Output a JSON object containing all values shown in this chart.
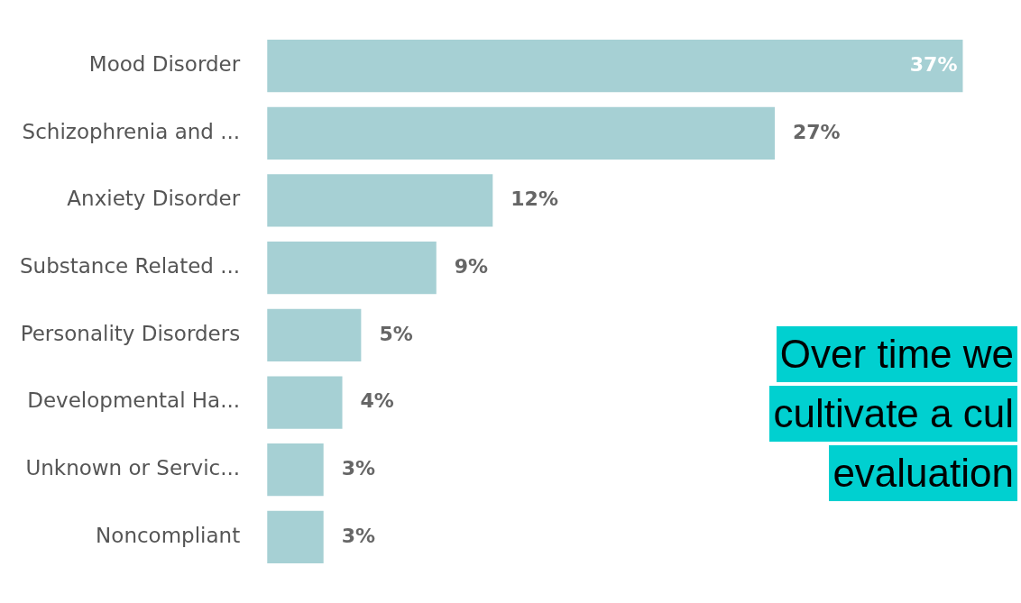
{
  "chart_data": {
    "type": "bar",
    "orientation": "horizontal",
    "categories": [
      "Mood Disorder",
      "Schizophrenia and ...",
      "Anxiety Disorder",
      "Substance Related ...",
      "Personality Disorders",
      "Developmental Ha...",
      "Unknown or Servic...",
      "Noncompliant"
    ],
    "values": [
      37,
      27,
      12,
      9,
      5,
      4,
      3,
      3
    ],
    "value_labels": [
      "37%",
      "27%",
      "12%",
      "9%",
      "5%",
      "4%",
      "3%",
      "3%"
    ],
    "color": "#a6d0d4",
    "annotations": [
      "Over time we",
      "cultivate a cul",
      "evaluation"
    ],
    "legend": false
  }
}
